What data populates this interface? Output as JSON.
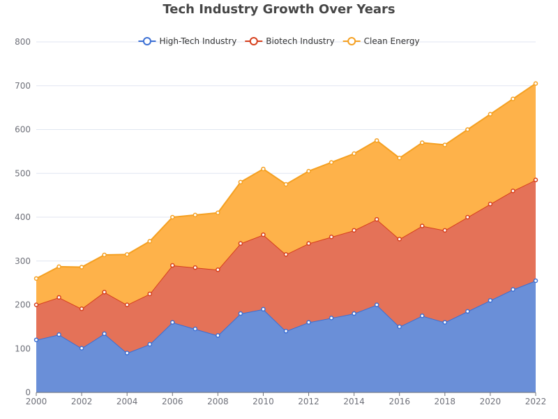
{
  "chart_data": {
    "type": "area",
    "stacked": true,
    "title": "Tech Industry Growth Over Years",
    "xlabel": "",
    "ylabel": "",
    "x": [
      2000,
      2001,
      2002,
      2003,
      2004,
      2005,
      2006,
      2007,
      2008,
      2009,
      2010,
      2011,
      2012,
      2013,
      2014,
      2015,
      2016,
      2017,
      2018,
      2019,
      2020,
      2021,
      2022
    ],
    "x_tick_labels": [
      "2000",
      "2002",
      "2004",
      "2006",
      "2008",
      "2010",
      "2012",
      "2014",
      "2016",
      "2018",
      "2020",
      "2022"
    ],
    "ylim": [
      0,
      800
    ],
    "y_ticks": [
      0,
      100,
      200,
      300,
      400,
      500,
      600,
      700,
      800
    ],
    "grid": true,
    "legend_position": "top-center",
    "series": [
      {
        "name": "High-Tech Industry",
        "color": "#3b6fd4",
        "fill": "#6a8fd8",
        "values": [
          120,
          132,
          101,
          134,
          90,
          110,
          160,
          145,
          130,
          180,
          190,
          140,
          160,
          170,
          180,
          200,
          150,
          175,
          160,
          185,
          210,
          235,
          255
        ]
      },
      {
        "name": "Biotech Industry",
        "color": "#d63f1c",
        "fill": "#e47258",
        "values": [
          80,
          85,
          90,
          95,
          110,
          115,
          130,
          140,
          150,
          160,
          170,
          175,
          180,
          185,
          190,
          195,
          200,
          205,
          210,
          215,
          220,
          225,
          230
        ]
      },
      {
        "name": "Clean Energy",
        "color": "#f5a021",
        "fill": "#feb24a",
        "values": [
          60,
          70,
          95,
          85,
          115,
          120,
          110,
          120,
          130,
          140,
          150,
          160,
          165,
          170,
          175,
          180,
          185,
          190,
          195,
          200,
          205,
          210,
          220
        ]
      }
    ]
  }
}
